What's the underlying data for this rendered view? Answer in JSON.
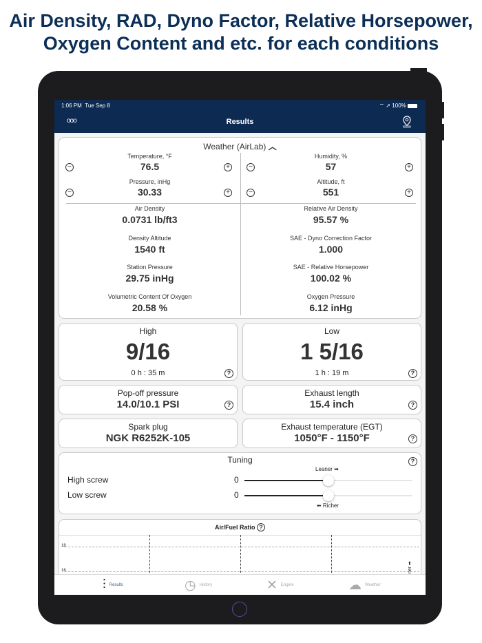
{
  "headline": {
    "line1": "Air Density, RAD, Dyno Factor, Relative Horsepower,",
    "line2": "Oxygen Content and etc. for each conditions"
  },
  "status": {
    "time": "1:06 PM",
    "date": "Tue Sep 8",
    "battery": "100%"
  },
  "nav": {
    "title": "Results",
    "more": "ooo"
  },
  "weather": {
    "title": "Weather (AirLab)",
    "inputs": [
      {
        "label": "Temperature, °F",
        "value": "76.5"
      },
      {
        "label": "Humidity, %",
        "value": "57"
      },
      {
        "label": "Pressure, inHg",
        "value": "30.33"
      },
      {
        "label": "Altitude, ft",
        "value": "551"
      }
    ],
    "results": [
      {
        "label": "Air Density",
        "value": "0.0731 lb/ft3"
      },
      {
        "label": "Relative Air Density",
        "value": "95.57 %"
      },
      {
        "label": "Density Altitude",
        "value": "1540 ft"
      },
      {
        "label": "SAE - Dyno Correction Factor",
        "value": "1.000"
      },
      {
        "label": "Station Pressure",
        "value": "29.75 inHg"
      },
      {
        "label": "SAE - Relative Horsepower",
        "value": "100.02 %"
      },
      {
        "label": "Volumetric Content Of Oxygen",
        "value": "20.58 %"
      },
      {
        "label": "Oxygen Pressure",
        "value": "6.12 inHg"
      }
    ]
  },
  "high": {
    "title": "High",
    "value": "9/16",
    "time": "0 h : 35 m"
  },
  "low": {
    "title": "Low",
    "value": "1 5/16",
    "time": "1 h : 19 m"
  },
  "popoff": {
    "title": "Pop-off pressure",
    "value": "14.0/10.1 PSI"
  },
  "exhaust": {
    "title": "Exhaust length",
    "value": "15.4 inch"
  },
  "spark": {
    "title": "Spark plug",
    "value": "NGK R6252K-105"
  },
  "egt": {
    "title": "Exhaust temperature (EGT)",
    "value": "1050°F - 1150°F"
  },
  "tuning": {
    "title": "Tuning",
    "leaner": "Leaner ➡",
    "richer": "⬅ Richer",
    "high_label": "High screw",
    "high_value": "0",
    "low_label": "Low screw",
    "low_value": "0"
  },
  "afr": {
    "title": "Air/Fuel Ratio",
    "ticks": [
      "18",
      "16"
    ],
    "side": "ner ➡"
  },
  "tabs": [
    {
      "label": "Results",
      "icon": "sliders-icon"
    },
    {
      "label": "History",
      "icon": "clock-icon"
    },
    {
      "label": "Engine",
      "icon": "wrench-icon"
    },
    {
      "label": "Weather",
      "icon": "cloud-sun-icon"
    }
  ]
}
